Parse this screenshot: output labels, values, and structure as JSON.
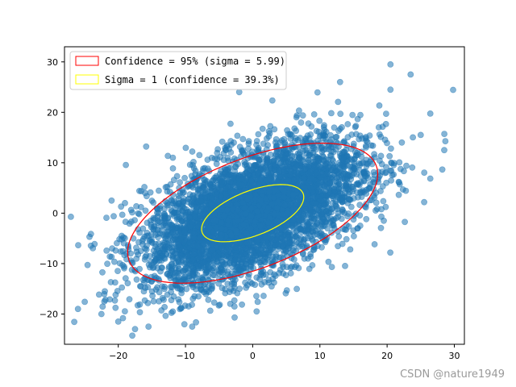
{
  "chart_data": {
    "type": "scatter",
    "xlim": [
      -28,
      31.5
    ],
    "ylim": [
      -26,
      33
    ],
    "x_ticks": [
      -20,
      -10,
      0,
      10,
      20,
      30
    ],
    "y_ticks": [
      -20,
      -10,
      0,
      10,
      20,
      30
    ],
    "grid": false,
    "legend_position": "top-left",
    "point_color": "#1f77b4",
    "point_alpha": 0.55,
    "series": [
      {
        "n_points": 5000,
        "mean": [
          0,
          0
        ],
        "x_std": 8.0,
        "y_std": 7.0,
        "correlation": 0.55,
        "outliers": [
          [
            -26,
            -19
          ],
          [
            -22.5,
            -20
          ],
          [
            -20,
            -21.5
          ],
          [
            -17.5,
            -23
          ],
          [
            -15.5,
            -22.5
          ],
          [
            -9,
            -22.5
          ],
          [
            -21,
            2.5
          ],
          [
            -19.5,
            -4.5
          ],
          [
            -22,
            -15.5
          ],
          [
            28.5,
            12.5
          ],
          [
            20.5,
            29.5
          ],
          [
            23.5,
            27.5
          ],
          [
            13,
            26
          ],
          [
            20.5,
            24.5
          ],
          [
            25,
            15.5
          ],
          [
            19.5,
            -1.5
          ],
          [
            16,
            -2.5
          ],
          [
            -2,
            24
          ],
          [
            -16,
            4
          ],
          [
            -19,
            2
          ]
        ]
      }
    ],
    "ellipses": [
      {
        "label": "Confidence = 95% (sigma = 5.99)",
        "color": "#ff0000",
        "center": [
          0,
          0
        ],
        "semi_major": 20.8,
        "semi_minor": 10.3,
        "angle_deg": 31
      },
      {
        "label": "Sigma = 1 (confidence = 39.3%)",
        "color": "#ffff00",
        "center": [
          0,
          0
        ],
        "semi_major": 8.5,
        "semi_minor": 4.2,
        "angle_deg": 31
      }
    ]
  },
  "watermark": "CSDN @nature1949"
}
